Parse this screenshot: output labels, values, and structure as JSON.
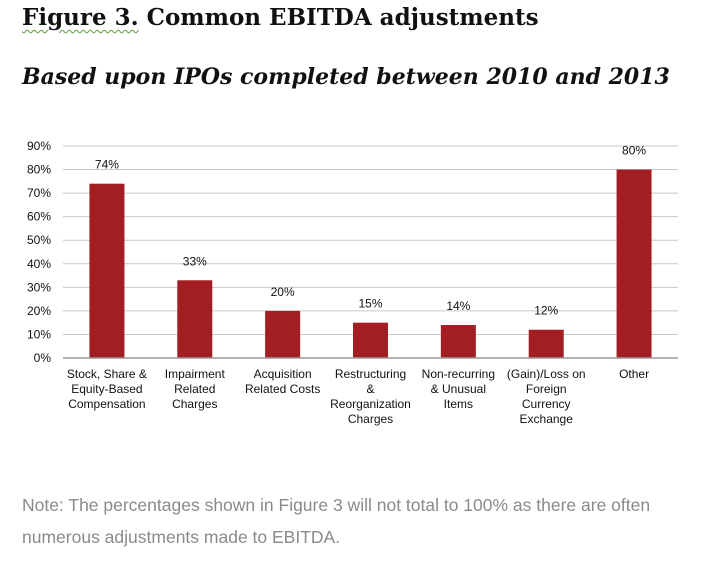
{
  "figure": {
    "title_prefix": "Figure 3.",
    "title_rest": " Common EBITDA adjustments",
    "subtitle": "Based upon IPOs completed between 2010 and 2013",
    "note": "Note: The percentages shown in Figure 3 will not total to 100% as there are often numerous adjustments made to EBITDA."
  },
  "colors": {
    "bar": "#a21e23",
    "grid": "#c8c8c8",
    "axis": "#9a9a9a",
    "text": "#111111"
  },
  "chart_data": {
    "type": "bar",
    "title": "",
    "xlabel": "",
    "ylabel": "",
    "ylim": [
      0,
      90
    ],
    "yticks": [
      0,
      10,
      20,
      30,
      40,
      50,
      60,
      70,
      80,
      90
    ],
    "ytick_labels": [
      "0%",
      "10%",
      "20%",
      "30%",
      "40%",
      "50%",
      "60%",
      "70%",
      "80%",
      "90%"
    ],
    "grid": true,
    "categories": [
      [
        "Stock, Share &",
        "Equity-Based",
        "Compensation"
      ],
      [
        "Impairment",
        "Related",
        "Charges"
      ],
      [
        "Acquisition",
        "Related Costs"
      ],
      [
        "Restructuring",
        "&",
        "Reorganization",
        "Charges"
      ],
      [
        "Non-recurring",
        "& Unusual",
        "Items"
      ],
      [
        "(Gain)/Loss on",
        "Foreign",
        "Currency",
        "Exchange"
      ],
      [
        "Other"
      ]
    ],
    "values": [
      74,
      33,
      20,
      15,
      14,
      12,
      80
    ],
    "data_labels": [
      "74%",
      "33%",
      "20%",
      "15%",
      "14%",
      "12%",
      "80%"
    ]
  }
}
